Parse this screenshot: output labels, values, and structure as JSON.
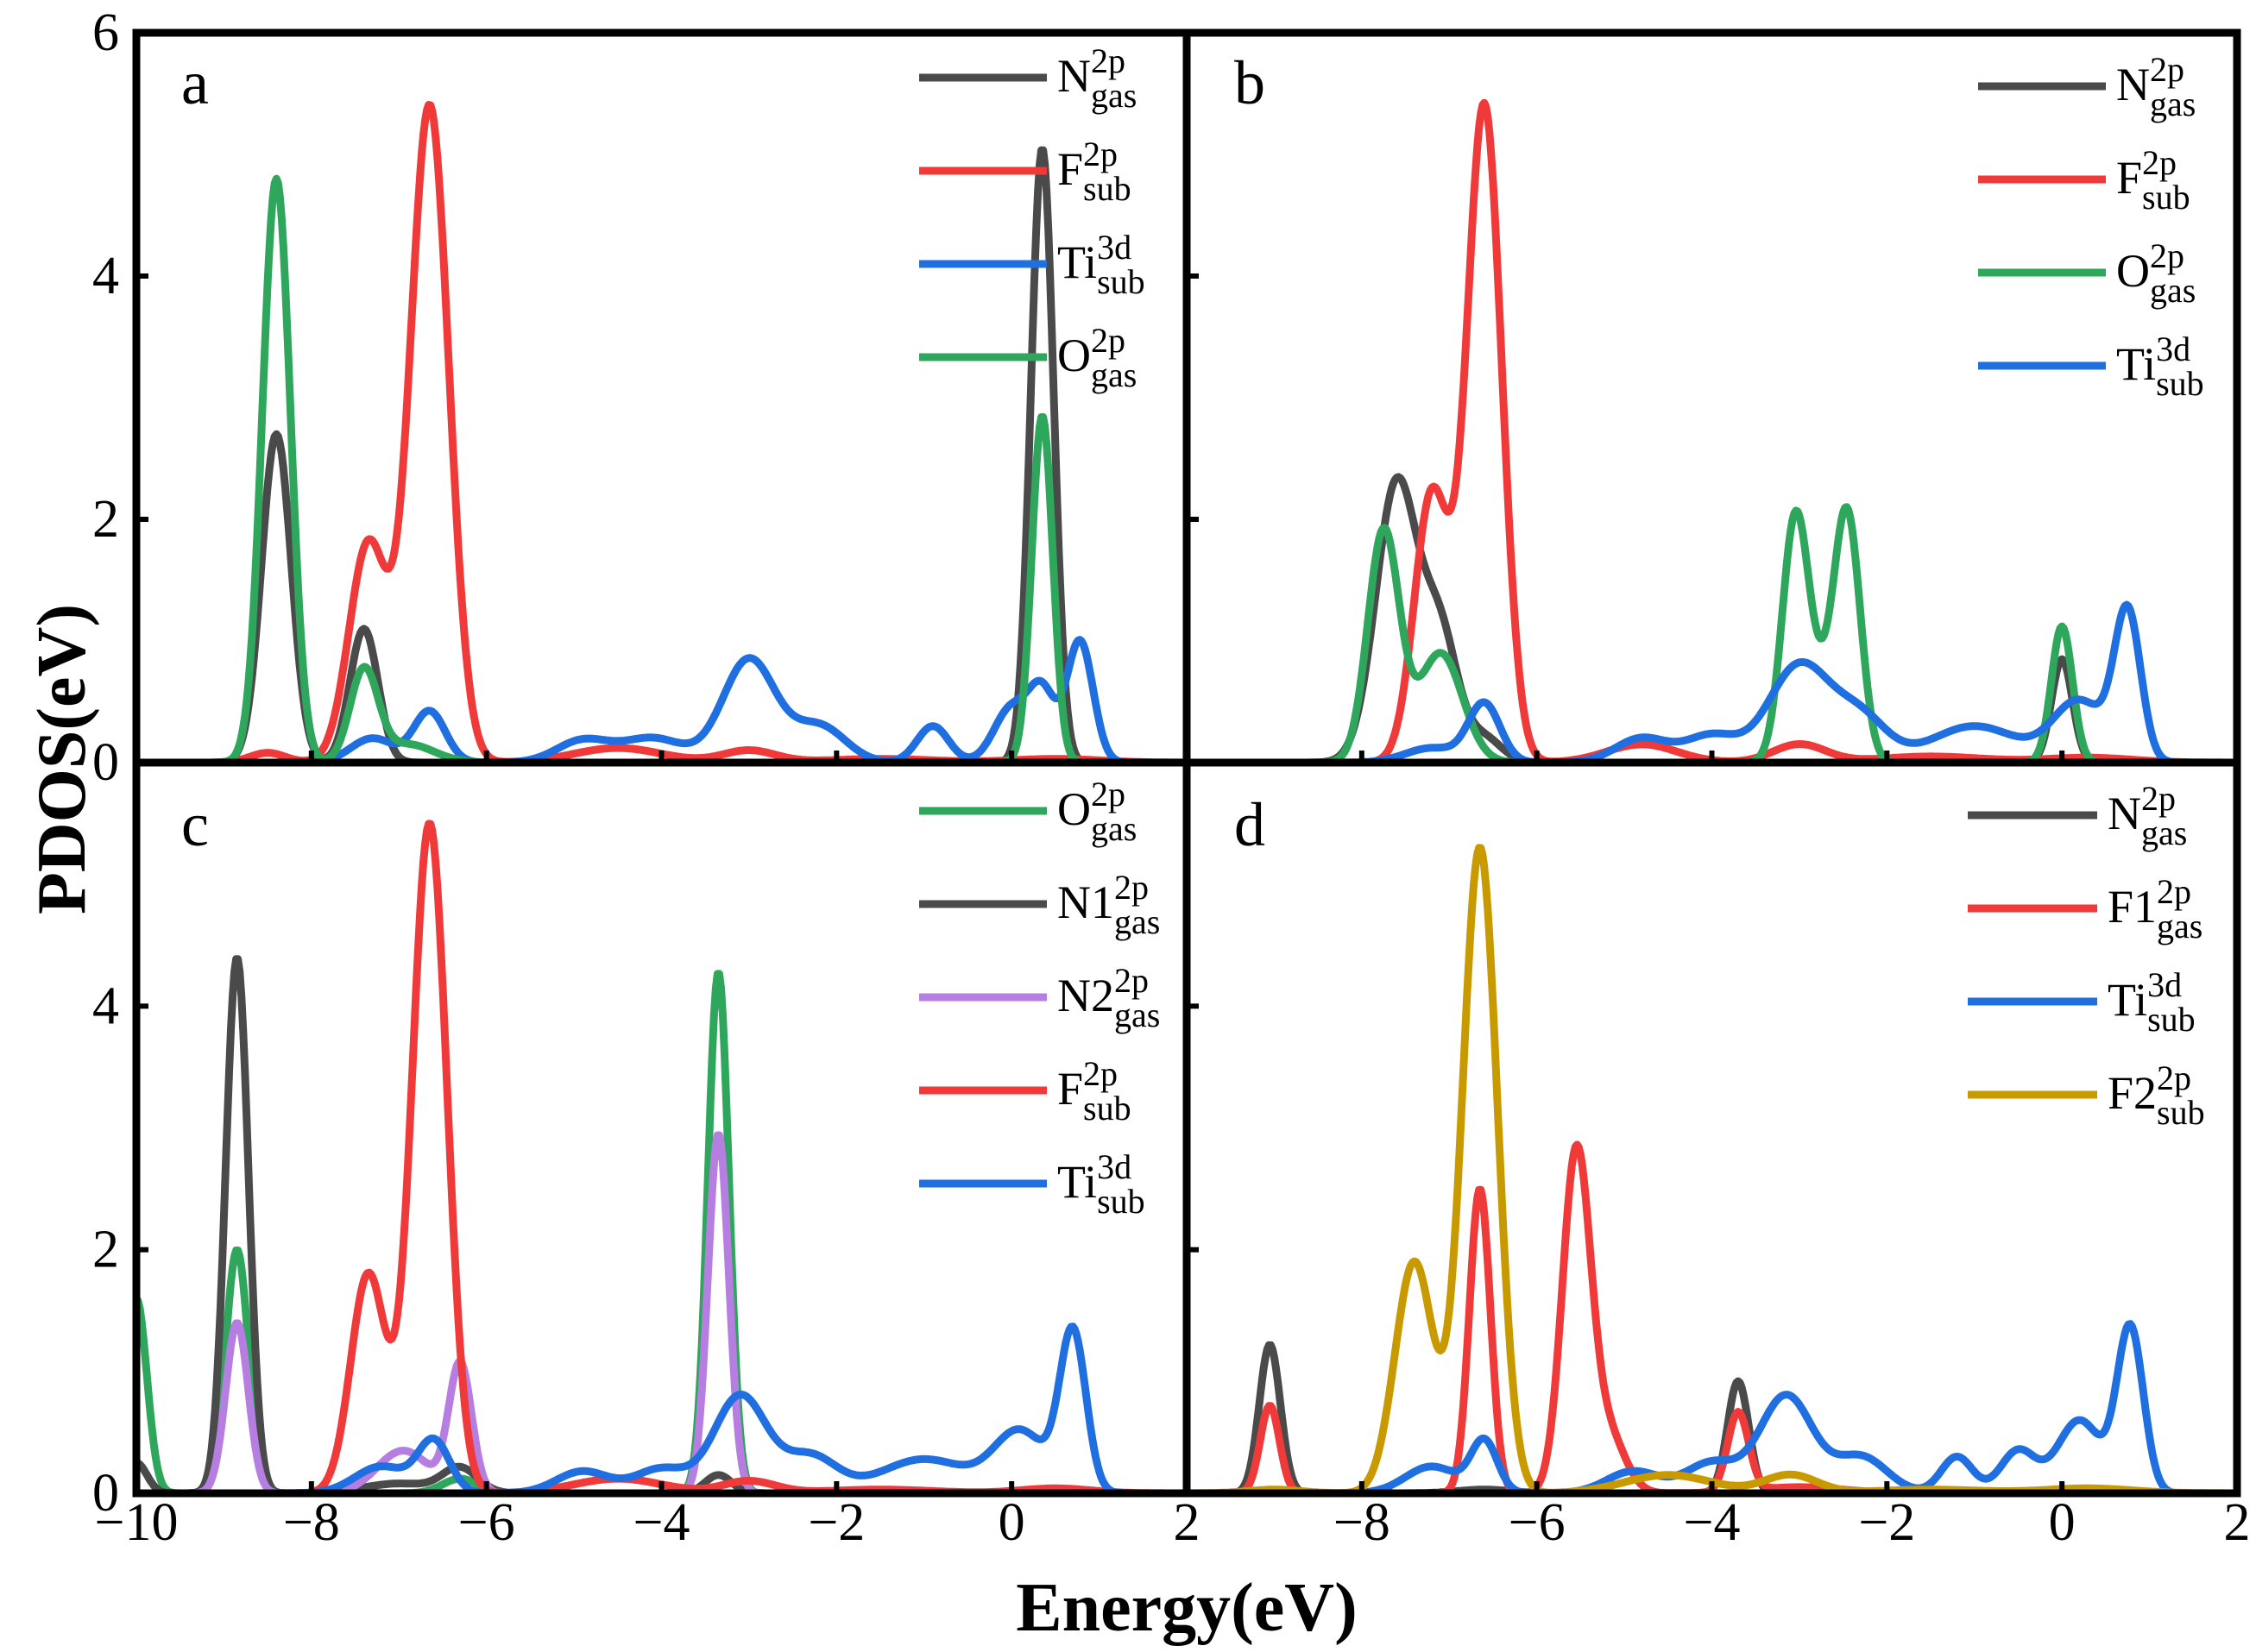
{
  "figure": {
    "xlabel": "Energy(eV)",
    "ylabel": "PDOS(eV)"
  },
  "colors": {
    "N": "#4a4a4a",
    "F": "#f03a3a",
    "Ti": "#1f6fe0",
    "O": "#2ea65c",
    "N2": "#b57ee0",
    "F2": "#c99a00"
  },
  "chart_data": [
    {
      "type": "line",
      "panel": "a",
      "xlim": [
        -10,
        2
      ],
      "ylim": [
        0,
        6
      ],
      "xticks": [
        -10,
        -8,
        -6,
        -4,
        -2,
        0,
        2
      ],
      "yticks": [
        0,
        2,
        4,
        6
      ],
      "legend_position": "top-right",
      "series": [
        {
          "name": "N",
          "sup": "2p",
          "sub": "gas",
          "color": "N",
          "peaks": [
            [
              -8.4,
              2.7,
              0.17
            ],
            [
              -7.4,
              1.1,
              0.16
            ],
            [
              0.35,
              5.05,
              0.13
            ]
          ]
        },
        {
          "name": "F",
          "sup": "2p",
          "sub": "sub",
          "color": "F",
          "peaks": [
            [
              -7.35,
              1.8,
              0.22
            ],
            [
              -6.65,
              5.4,
              0.22
            ],
            [
              -8.5,
              0.08,
              0.2
            ],
            [
              -4.5,
              0.12,
              0.5
            ],
            [
              -3.0,
              0.1,
              0.3
            ],
            [
              -1.5,
              0.03,
              0.6
            ],
            [
              0.5,
              0.03,
              0.5
            ]
          ]
        },
        {
          "name": "Ti",
          "sup": "3d",
          "sub": "sub",
          "color": "Ti",
          "peaks": [
            [
              -7.3,
              0.2,
              0.25
            ],
            [
              -6.65,
              0.42,
              0.18
            ],
            [
              -4.9,
              0.18,
              0.3
            ],
            [
              -4.1,
              0.2,
              0.35
            ],
            [
              -3.0,
              0.85,
              0.3
            ],
            [
              -2.2,
              0.3,
              0.3
            ],
            [
              -0.9,
              0.3,
              0.18
            ],
            [
              0.0,
              0.45,
              0.2
            ],
            [
              0.35,
              0.55,
              0.15
            ],
            [
              0.78,
              1.0,
              0.15
            ]
          ]
        },
        {
          "name": "O",
          "sup": "2p",
          "sub": "gas",
          "color": "O",
          "peaks": [
            [
              -8.4,
              4.8,
              0.16
            ],
            [
              -7.4,
              0.75,
              0.16
            ],
            [
              -6.9,
              0.15,
              0.3
            ],
            [
              0.35,
              2.85,
              0.12
            ]
          ]
        }
      ]
    },
    {
      "type": "line",
      "panel": "b",
      "xlim": [
        -10,
        2
      ],
      "ylim": [
        0,
        6
      ],
      "xticks": [
        -8,
        -6,
        -4,
        -2,
        0,
        2
      ],
      "yticks": [
        0,
        2,
        4,
        6
      ],
      "legend_position": "top-right",
      "series": [
        {
          "name": "N",
          "sup": "2p",
          "sub": "gas",
          "color": "N",
          "peaks": [
            [
              -7.6,
              2.3,
              0.24
            ],
            [
              -7.1,
              1.0,
              0.2
            ],
            [
              -6.6,
              0.2,
              0.2
            ],
            [
              0.0,
              0.85,
              0.12
            ]
          ]
        },
        {
          "name": "F",
          "sup": "2p",
          "sub": "sub",
          "color": "F",
          "peaks": [
            [
              -7.2,
              2.2,
              0.2
            ],
            [
              -6.6,
              5.4,
              0.2
            ],
            [
              -4.8,
              0.15,
              0.4
            ],
            [
              -3.0,
              0.15,
              0.3
            ],
            [
              -1.5,
              0.05,
              0.6
            ],
            [
              0.3,
              0.04,
              0.5
            ]
          ]
        },
        {
          "name": "O",
          "sup": "2p",
          "sub": "gas",
          "color": "O",
          "peaks": [
            [
              -7.75,
              1.9,
              0.18
            ],
            [
              -7.1,
              0.9,
              0.25
            ],
            [
              -3.05,
              1.9,
              0.15
            ],
            [
              -2.45,
              1.93,
              0.15
            ],
            [
              -2.75,
              0.5,
              0.2
            ],
            [
              0.0,
              1.12,
              0.12
            ]
          ]
        },
        {
          "name": "Ti",
          "sup": "3d",
          "sub": "sub",
          "color": "Ti",
          "peaks": [
            [
              -7.2,
              0.12,
              0.3
            ],
            [
              -6.6,
              0.48,
              0.18
            ],
            [
              -4.8,
              0.2,
              0.3
            ],
            [
              -4.0,
              0.22,
              0.3
            ],
            [
              -3.0,
              0.8,
              0.35
            ],
            [
              -2.3,
              0.35,
              0.3
            ],
            [
              -1.0,
              0.3,
              0.5
            ],
            [
              0.2,
              0.5,
              0.3
            ],
            [
              0.75,
              1.2,
              0.15
            ]
          ]
        }
      ]
    },
    {
      "type": "line",
      "panel": "c",
      "xlim": [
        -10,
        2
      ],
      "ylim": [
        0,
        6
      ],
      "xticks": [
        -10,
        -8,
        -6,
        -4,
        -2,
        0,
        2
      ],
      "yticks": [
        0,
        2,
        4
      ],
      "legend_position": "top-right",
      "series": [
        {
          "name": "O",
          "sup": "2p",
          "sub": "gas",
          "color": "O",
          "peaks": [
            [
              -10.0,
              1.6,
              0.12
            ],
            [
              -8.85,
              2.0,
              0.13
            ],
            [
              -6.3,
              0.12,
              0.2
            ],
            [
              -3.35,
              4.28,
              0.12
            ]
          ]
        },
        {
          "name": "N1",
          "sup": "2p",
          "sub": "gas",
          "color": "N",
          "peaks": [
            [
              -10.0,
              0.25,
              0.12
            ],
            [
              -8.85,
              4.4,
              0.13
            ],
            [
              -7.0,
              0.08,
              0.4
            ],
            [
              -6.3,
              0.2,
              0.2
            ],
            [
              -3.35,
              0.15,
              0.15
            ]
          ]
        },
        {
          "name": "N2",
          "sup": "2p",
          "sub": "gas",
          "color": "N2",
          "peaks": [
            [
              -8.85,
              1.4,
              0.13
            ],
            [
              -6.95,
              0.35,
              0.3
            ],
            [
              -6.3,
              1.05,
              0.13
            ],
            [
              -3.35,
              2.95,
              0.12
            ]
          ]
        },
        {
          "name": "F",
          "sup": "2p",
          "sub": "sub",
          "color": "F",
          "peaks": [
            [
              -7.35,
              1.8,
              0.2
            ],
            [
              -6.65,
              5.5,
              0.2
            ],
            [
              -4.5,
              0.12,
              0.5
            ],
            [
              -3.0,
              0.1,
              0.3
            ],
            [
              -1.5,
              0.03,
              0.6
            ],
            [
              0.5,
              0.04,
              0.4
            ]
          ]
        },
        {
          "name": "Ti",
          "sup": "3d",
          "sub": "sub",
          "color": "Ti",
          "peaks": [
            [
              -7.2,
              0.22,
              0.3
            ],
            [
              -6.6,
              0.42,
              0.18
            ],
            [
              -4.9,
              0.18,
              0.3
            ],
            [
              -4.0,
              0.2,
              0.3
            ],
            [
              -3.1,
              0.8,
              0.3
            ],
            [
              -2.3,
              0.3,
              0.3
            ],
            [
              -1.0,
              0.28,
              0.5
            ],
            [
              0.1,
              0.5,
              0.3
            ],
            [
              0.7,
              1.3,
              0.15
            ]
          ]
        }
      ]
    },
    {
      "type": "line",
      "panel": "d",
      "xlim": [
        -10,
        2
      ],
      "ylim": [
        0,
        6
      ],
      "xticks": [
        -8,
        -6,
        -4,
        -2,
        0,
        2
      ],
      "yticks": [
        0,
        2,
        4
      ],
      "legend_position": "top-right",
      "series": [
        {
          "name": "N",
          "sup": "2p",
          "sub": "gas",
          "color": "N",
          "peaks": [
            [
              -9.05,
              1.22,
              0.12
            ],
            [
              -6.6,
              0.03,
              0.3
            ],
            [
              -3.7,
              0.92,
              0.12
            ]
          ]
        },
        {
          "name": "F1",
          "sup": "2p",
          "sub": "gas",
          "color": "F",
          "peaks": [
            [
              -9.05,
              0.72,
              0.11
            ],
            [
              -6.65,
              2.5,
              0.12
            ],
            [
              -5.55,
              2.75,
              0.16
            ],
            [
              -5.2,
              0.5,
              0.2
            ],
            [
              -3.7,
              0.65,
              0.12
            ],
            [
              -3.0,
              0.05,
              0.5
            ]
          ]
        },
        {
          "name": "Ti",
          "sup": "3d",
          "sub": "sub",
          "color": "Ti",
          "peaks": [
            [
              -7.2,
              0.22,
              0.3
            ],
            [
              -6.6,
              0.42,
              0.15
            ],
            [
              -4.9,
              0.18,
              0.3
            ],
            [
              -4.0,
              0.25,
              0.3
            ],
            [
              -3.15,
              0.8,
              0.3
            ],
            [
              -2.3,
              0.3,
              0.3
            ],
            [
              -1.2,
              0.3,
              0.18
            ],
            [
              -0.5,
              0.35,
              0.2
            ],
            [
              0.2,
              0.6,
              0.25
            ],
            [
              0.78,
              1.35,
              0.15
            ]
          ]
        },
        {
          "name": "F2",
          "sup": "2p",
          "sub": "sub",
          "color": "F2",
          "peaks": [
            [
              -7.4,
              1.9,
              0.22
            ],
            [
              -6.65,
              5.3,
              0.2
            ],
            [
              -9.0,
              0.03,
              0.3
            ],
            [
              -4.5,
              0.15,
              0.5
            ],
            [
              -3.1,
              0.15,
              0.3
            ],
            [
              -1.5,
              0.03,
              0.6
            ],
            [
              0.3,
              0.04,
              0.5
            ]
          ]
        }
      ]
    }
  ]
}
